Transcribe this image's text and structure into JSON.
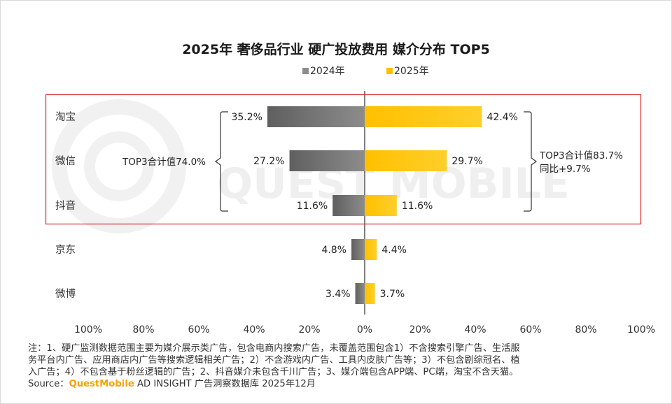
{
  "title": "2025年 奢侈品行业 硬广投放费用 媒介分布 TOP5",
  "watermark": "QUEST MOBILE",
  "colors": {
    "series_2024": "#8c8c8c",
    "series_2025": "#ffc000",
    "highlight_box": "#d9252a"
  },
  "chart_data": {
    "type": "bar",
    "orientation": "horizontal-butterfly",
    "categories": [
      "淘宝",
      "微信",
      "抖音",
      "京东",
      "微博"
    ],
    "series": [
      {
        "name": "2024年",
        "values": [
          35.2,
          27.2,
          11.6,
          4.8,
          3.4
        ],
        "labels": [
          "35.2%",
          "27.2%",
          "11.6%",
          "4.8%",
          "3.4%"
        ]
      },
      {
        "name": "2025年",
        "values": [
          42.4,
          29.7,
          11.6,
          4.4,
          3.7
        ],
        "labels": [
          "42.4%",
          "29.7%",
          "11.6%",
          "4.4%",
          "3.7%"
        ]
      }
    ],
    "x_ticks": [
      "100%",
      "80%",
      "60%",
      "40%",
      "20%",
      "0%",
      "20%",
      "40%",
      "60%",
      "80%",
      "100%"
    ],
    "xlim": [
      -100,
      100
    ],
    "legend_position": "top",
    "annotations": {
      "left_bracket": "TOP3合计值74.0%",
      "right_bracket_line1": "TOP3合计值83.7%",
      "right_bracket_line2": "同比+9.7%"
    }
  },
  "notes": {
    "line1": "注：1、硬广监测数据范围主要为媒介展示类广告，包含电商内搜索广告，未覆盖范围包含1）不含搜索引擎广告、生活服",
    "line2": "务平台内广告、应用商店内广告等搜索逻辑相关广告；2）不含游戏内广告、工具内皮肤广告等；3）不包含剧综冠名、植",
    "line3": "入广告；4）不包含基于粉丝逻辑的广告；2、抖音媒介未包含千川广告；3、媒介端包含APP端、PC端，淘宝不含天猫。",
    "source_prefix": "Source：",
    "source_brand": "QuestMobile",
    "source_suffix": " AD INSIGHT 广告洞察数据库 2025年12月"
  }
}
